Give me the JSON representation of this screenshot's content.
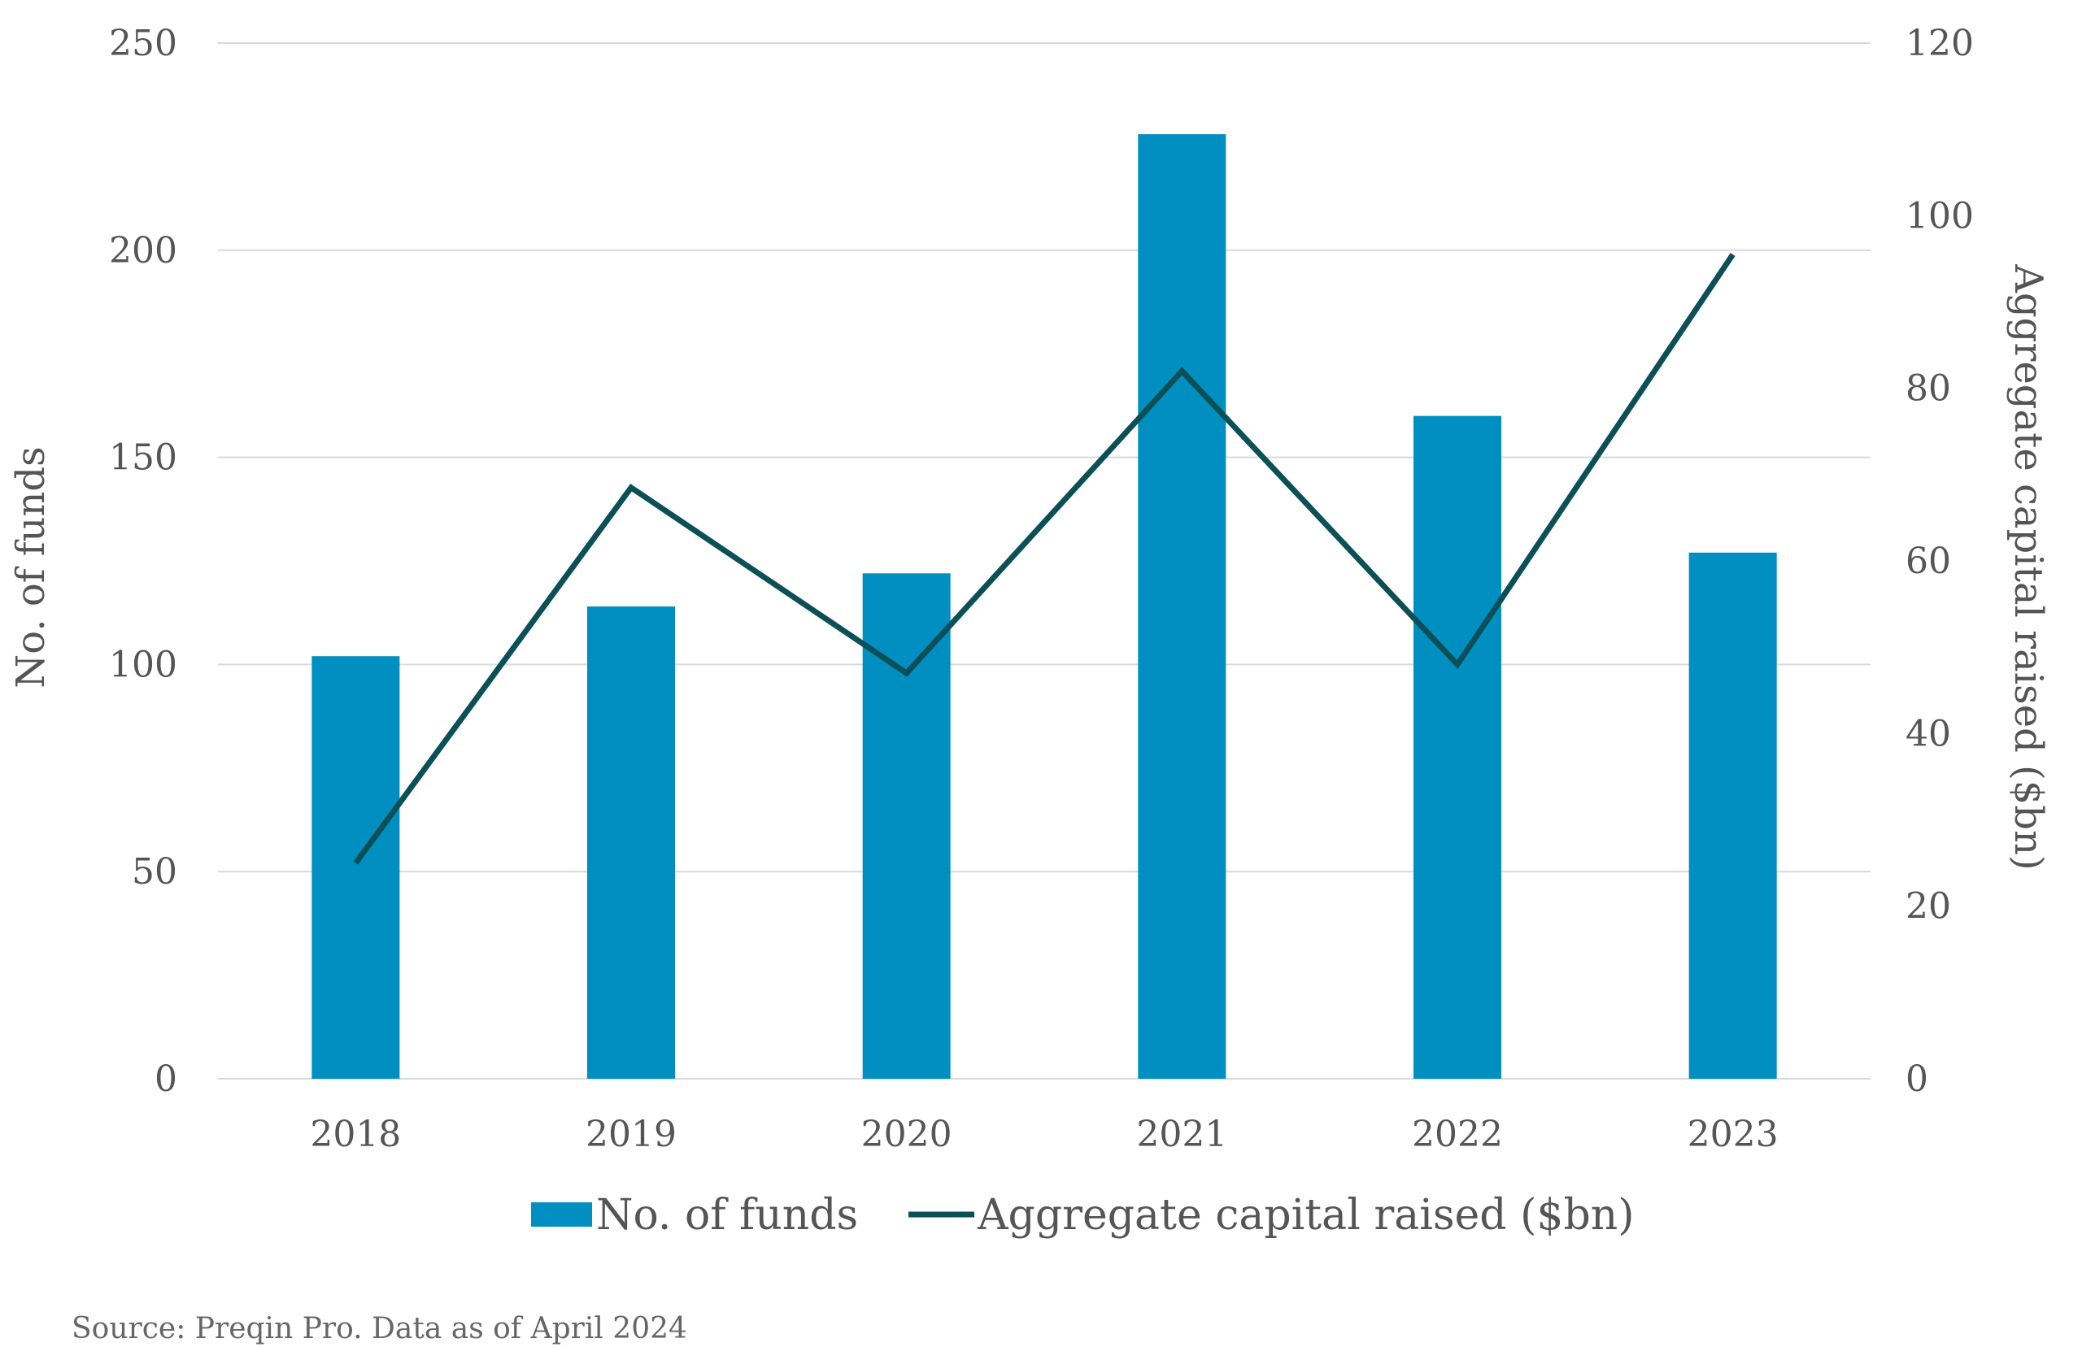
{
  "chart_data": {
    "type": "bar",
    "categories": [
      "2018",
      "2019",
      "2020",
      "2021",
      "2022",
      "2023"
    ],
    "series": [
      {
        "name": "No. of funds",
        "type": "bar",
        "axis": "left",
        "color": "#008FC0",
        "values": [
          102,
          114,
          122,
          228,
          160,
          127
        ]
      },
      {
        "name": "Aggregate capital raised ($bn)",
        "type": "line",
        "axis": "right",
        "color": "#0B4F57",
        "values": [
          25,
          68.5,
          47,
          82,
          48,
          95.5
        ]
      }
    ],
    "ylabel": "No. of funds",
    "ylabel_right": "Aggregate capital raised ($bn)",
    "ylim": [
      0,
      250
    ],
    "yticks": [
      "0",
      "50",
      "100",
      "150",
      "200",
      "250"
    ],
    "ylim_right": [
      0,
      120
    ],
    "yticks_right": [
      "0",
      "20",
      "40",
      "60",
      "80",
      "100",
      "120"
    ],
    "grid": true,
    "legend_position": "bottom",
    "gridline_color": "#D9D9D9"
  },
  "source_note": "Source: Preqin Pro. Data as of April 2024"
}
